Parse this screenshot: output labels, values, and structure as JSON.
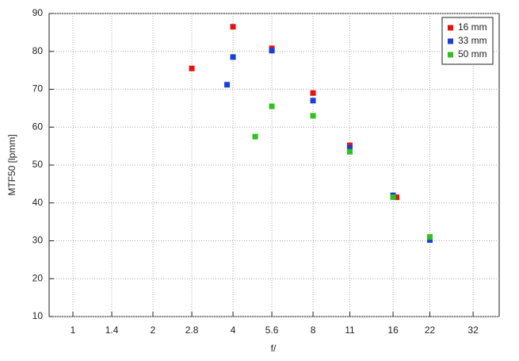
{
  "chart_data": {
    "type": "scatter",
    "x_label": "f/",
    "y_label": "MTF50 [lpmm]",
    "xscale": "log",
    "xlim": [
      0.814,
      40.1
    ],
    "xticks": [
      1,
      1.4,
      2,
      2.8,
      4,
      5.6,
      8,
      11,
      16,
      22,
      32
    ],
    "ylim": [
      10,
      90
    ],
    "yticks": [
      10,
      20,
      30,
      40,
      50,
      60,
      70,
      80,
      90
    ],
    "grid": true,
    "legend": "top-right",
    "series": [
      {
        "name": "16 mm",
        "color": "#e8110f",
        "x": [
          2.8,
          4,
          5.6,
          8,
          11,
          16.5,
          22
        ],
        "values": [
          75.5,
          86.5,
          80.8,
          69,
          55.2,
          41.5,
          31
        ]
      },
      {
        "name": "33 mm",
        "color": "#1b3fd6",
        "x": [
          3.8,
          4,
          5.6,
          8,
          11,
          16,
          22
        ],
        "values": [
          71.2,
          78.5,
          80.2,
          67,
          54.5,
          42,
          30.2
        ]
      },
      {
        "name": "50 mm",
        "color": "#2ec11f",
        "x": [
          4.85,
          5.6,
          8,
          11,
          16,
          22
        ],
        "values": [
          57.5,
          65.5,
          63,
          53.5,
          41.5,
          31
        ]
      }
    ]
  }
}
